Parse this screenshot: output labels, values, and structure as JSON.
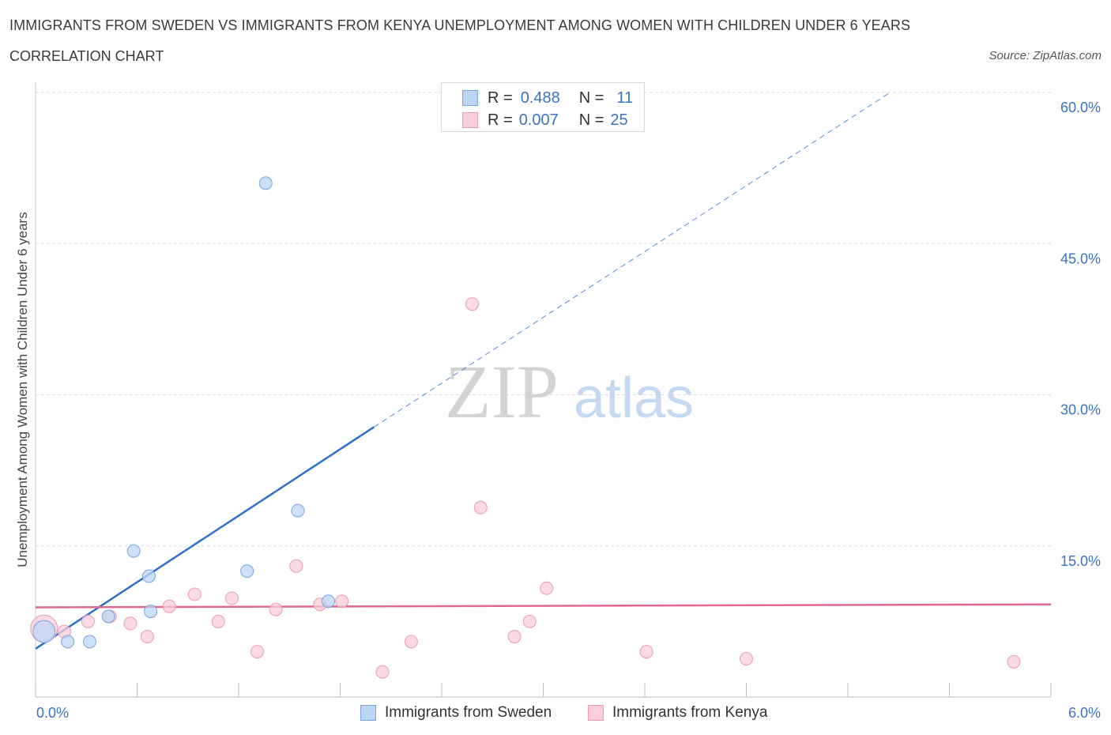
{
  "header": {
    "title": "IMMIGRANTS FROM SWEDEN VS IMMIGRANTS FROM KENYA UNEMPLOYMENT AMONG WOMEN WITH CHILDREN UNDER 6 YEARS",
    "subtitle": "CORRELATION CHART",
    "source": "Source: ZipAtlas.com"
  },
  "watermark": {
    "zip": "ZIP",
    "atlas": "atlas"
  },
  "legend": {
    "sweden": {
      "r_label": "R =",
      "r_value": "0.488",
      "n_label": "N =",
      "n_value": "11"
    },
    "kenya": {
      "r_label": "R =",
      "r_value": "0.007",
      "n_label": "N =",
      "n_value": "25"
    }
  },
  "colors": {
    "sweden_fill": "#bcd5f5",
    "sweden_stroke": "#7aa5e0",
    "sweden_line": "#2f6fcd",
    "kenya_fill": "#f9cddb",
    "kenya_stroke": "#ea9ab4",
    "kenya_line": "#e06896",
    "tick_label": "#3b73c4",
    "grid": "#dcdcdc"
  },
  "chart_data": {
    "type": "scatter",
    "title": "IMMIGRANTS FROM SWEDEN VS IMMIGRANTS FROM KENYA UNEMPLOYMENT AMONG WOMEN WITH CHILDREN UNDER 6 YEARS",
    "xlabel": "",
    "ylabel": "Unemployment Among Women with Children Under 6 years",
    "xlim": [
      0,
      6
    ],
    "ylim": [
      0,
      60
    ],
    "x_tick_labels": [
      "0.0%",
      "6.0%"
    ],
    "y_ticks": [
      15,
      30,
      45,
      60
    ],
    "y_tick_labels": [
      "15.0%",
      "30.0%",
      "45.0%",
      "60.0%"
    ],
    "series": [
      {
        "name": "Immigrants from Sweden",
        "r": 0.488,
        "n": 11,
        "points": [
          {
            "x": 0.05,
            "y": 6.5,
            "size": "large"
          },
          {
            "x": 0.19,
            "y": 5.5
          },
          {
            "x": 0.32,
            "y": 5.5
          },
          {
            "x": 0.43,
            "y": 8.0
          },
          {
            "x": 0.58,
            "y": 14.5
          },
          {
            "x": 0.67,
            "y": 12.0
          },
          {
            "x": 0.68,
            "y": 8.5
          },
          {
            "x": 1.25,
            "y": 12.5
          },
          {
            "x": 1.36,
            "y": 51.0
          },
          {
            "x": 1.55,
            "y": 18.5
          },
          {
            "x": 1.73,
            "y": 9.5
          }
        ],
        "trend": {
          "x_start": 0.0,
          "y_start": 4.8,
          "x_solid_end": 2.0,
          "y_solid_end": 26.8,
          "x_dash_end": 5.05,
          "y_dash_end": 60.0
        }
      },
      {
        "name": "Immigrants from Kenya",
        "r": 0.007,
        "n": 25,
        "points": [
          {
            "x": 0.05,
            "y": 6.8,
            "size": "large"
          },
          {
            "x": 0.17,
            "y": 6.5
          },
          {
            "x": 0.31,
            "y": 7.5
          },
          {
            "x": 0.44,
            "y": 8.0
          },
          {
            "x": 0.56,
            "y": 7.3
          },
          {
            "x": 0.66,
            "y": 6.0
          },
          {
            "x": 0.79,
            "y": 9.0
          },
          {
            "x": 0.94,
            "y": 10.2
          },
          {
            "x": 1.08,
            "y": 7.5
          },
          {
            "x": 1.16,
            "y": 9.8
          },
          {
            "x": 1.31,
            "y": 4.5
          },
          {
            "x": 1.42,
            "y": 8.7
          },
          {
            "x": 1.54,
            "y": 13.0
          },
          {
            "x": 1.68,
            "y": 9.2
          },
          {
            "x": 1.81,
            "y": 9.5
          },
          {
            "x": 2.05,
            "y": 2.5
          },
          {
            "x": 2.22,
            "y": 5.5
          },
          {
            "x": 2.58,
            "y": 39.0
          },
          {
            "x": 2.63,
            "y": 18.8
          },
          {
            "x": 2.83,
            "y": 6.0
          },
          {
            "x": 2.92,
            "y": 7.5
          },
          {
            "x": 3.02,
            "y": 10.8
          },
          {
            "x": 3.61,
            "y": 4.5
          },
          {
            "x": 4.2,
            "y": 3.8
          },
          {
            "x": 5.78,
            "y": 3.5
          }
        ],
        "trend": {
          "x_start": 0.0,
          "y_start": 8.9,
          "x_end": 6.0,
          "y_end": 9.2
        }
      }
    ]
  },
  "bottom_legend": {
    "sweden_label": "Immigrants from Sweden",
    "kenya_label": "Immigrants from Kenya"
  }
}
